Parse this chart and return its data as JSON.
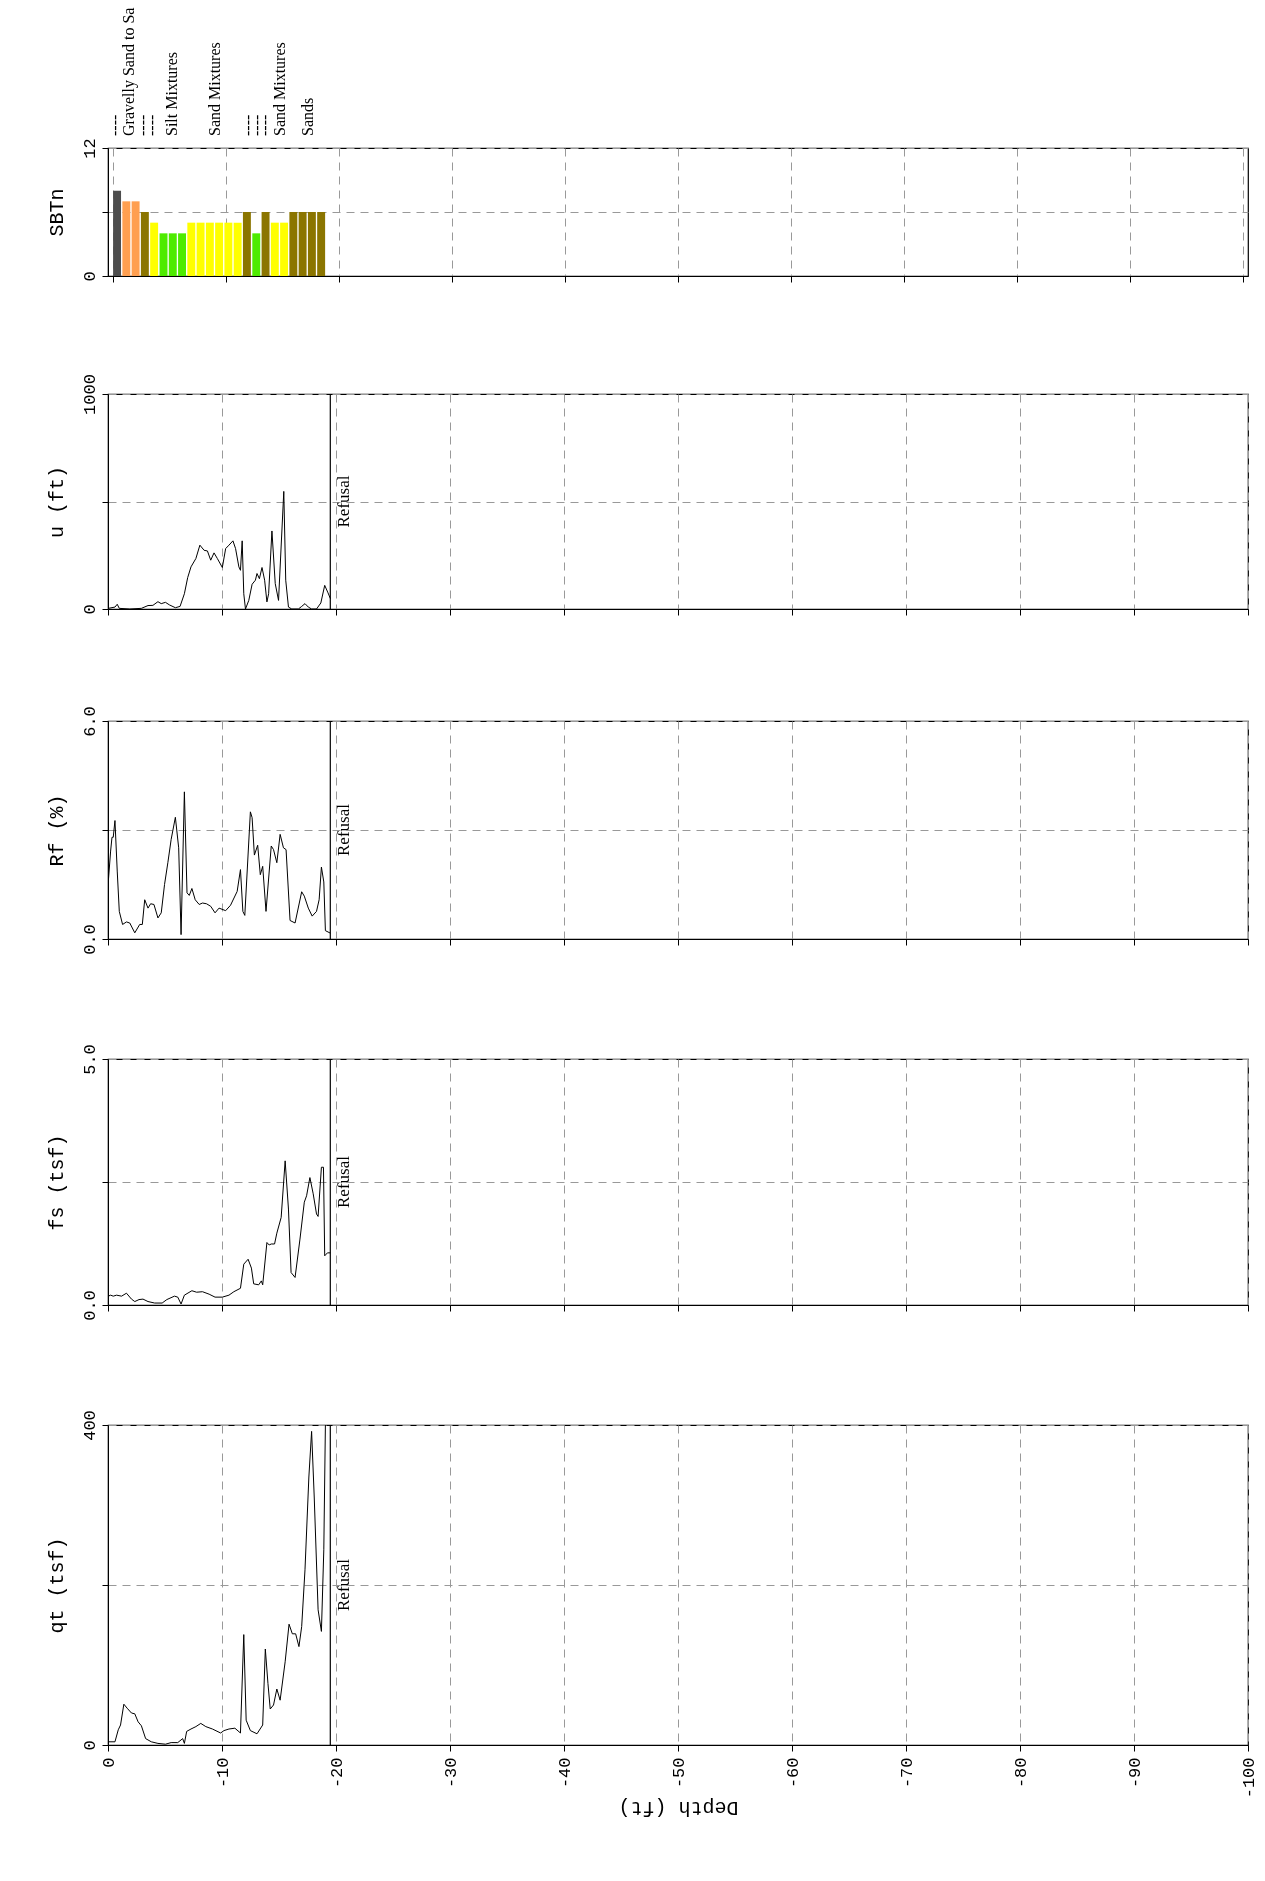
{
  "chart_data": [
    {
      "type": "bar",
      "ylabel": "SBTn",
      "x": [
        -0.36,
        -1.18,
        -2.0,
        -2.82,
        -3.64,
        -4.47,
        -5.29,
        -6.11,
        -6.93,
        -7.75,
        -8.57,
        -9.39,
        -10.21,
        -11.03,
        -11.85,
        -12.68,
        -13.5,
        -14.32,
        -15.14,
        -15.96,
        -16.78,
        -17.6,
        -18.42
      ],
      "values": [
        8,
        7,
        7,
        6,
        5,
        4,
        4,
        4,
        5,
        5,
        5,
        5,
        5,
        5,
        6,
        4,
        6,
        5,
        5,
        6,
        6,
        6,
        6
      ],
      "colors": [
        "#4d4d4d",
        "#ff9f50",
        "#ff9f50",
        "#8b7500",
        "#ffff00",
        "#4eeb00",
        "#4eeb00",
        "#4eeb00",
        "#ffff00",
        "#ffff00",
        "#ffff00",
        "#ffff00",
        "#ffff00",
        "#ffff00",
        "#8b7500",
        "#4eeb00",
        "#8b7500",
        "#ffff00",
        "#ffff00",
        "#8b7500",
        "#8b7500",
        "#8b7500",
        "#8b7500"
      ],
      "annotations": [
        "----",
        "Gravelly Sand to Sa",
        "----",
        "----",
        "Silt Mixtures",
        "Sand Mixtures",
        "----",
        "----",
        "----",
        "Sand Mixtures",
        "Sands"
      ],
      "xlim": [
        0,
        -100
      ],
      "xticks": [
        0,
        -10,
        -20,
        -30,
        -40,
        -50,
        -60,
        -70,
        -80,
        -90,
        -100
      ],
      "ylim": [
        0,
        12
      ],
      "yticks": [
        0,
        {
          "value": 6,
          "label": null
        },
        12
      ],
      "grid": true,
      "tick_labels": "y"
    },
    {
      "type": "line",
      "ylabel": "u (ft)",
      "x": [
        -0.03,
        -0.61,
        -0.81,
        -0.99,
        -1.91,
        -2.93,
        -3.51,
        -3.94,
        -4.38,
        -4.67,
        -5.04,
        -5.39,
        -5.91,
        -6.32,
        -6.7,
        -6.99,
        -7.28,
        -7.71,
        -8.06,
        -8.43,
        -8.72,
        -9.01,
        -9.3,
        -9.59,
        -10.03,
        -10.32,
        -10.61,
        -10.96,
        -11.19,
        -11.48,
        -11.62,
        -11.77,
        -11.91,
        -12.06,
        -12.35,
        -12.64,
        -12.93,
        -13.07,
        -13.28,
        -13.51,
        -13.74,
        -13.94,
        -14.09,
        -14.38,
        -14.67,
        -14.96,
        -15.42,
        -15.59,
        -15.83,
        -16.12,
        -16.7,
        -16.99,
        -17.28,
        -17.57,
        -17.86,
        -18.29,
        -18.67,
        -19.01,
        -19.3,
        -19.51
      ],
      "series": [
        {
          "color": "#000000",
          "values": [
            3,
            9,
            22,
            3,
            0,
            3,
            16,
            17,
            34,
            25,
            31,
            19,
            6,
            12,
            71,
            146,
            196,
            235,
            297,
            273,
            270,
            227,
            261,
            235,
            193,
            281,
            297,
            317,
            281,
            196,
            180,
            317,
            71,
            0,
            40,
            115,
            134,
            165,
            141,
            193,
            134,
            33,
            71,
            363,
            118,
            40,
            547,
            134,
            9,
            0,
            0,
            12,
            25,
            9,
            0,
            0,
            28,
            110,
            75,
            48
          ]
        }
      ],
      "ref_lines": [
        {
          "axis": "x",
          "value": -19.5,
          "label": "Refusal",
          "color": "#000000"
        }
      ],
      "xlim": [
        0,
        -100
      ],
      "xticks": [
        0,
        -10,
        -20,
        -30,
        -40,
        -50,
        -60,
        -70,
        -80,
        -90,
        -100
      ],
      "ylim": [
        0,
        1000
      ],
      "yticks": [
        0,
        {
          "value": 500,
          "label": null
        },
        1000
      ],
      "grid": true,
      "tick_labels": "y"
    },
    {
      "type": "line",
      "ylabel": "Rf (%)",
      "x": [
        -0.03,
        -0.23,
        -0.35,
        -0.46,
        -0.61,
        -0.81,
        -0.99,
        -1.28,
        -1.62,
        -1.91,
        -2.35,
        -2.78,
        -3.01,
        -3.22,
        -3.51,
        -3.74,
        -4.03,
        -4.38,
        -4.67,
        -4.96,
        -5.25,
        -5.54,
        -5.91,
        -6.2,
        -6.41,
        -6.7,
        -6.93,
        -7.13,
        -7.36,
        -7.65,
        -8.0,
        -8.29,
        -8.64,
        -9.01,
        -9.39,
        -9.74,
        -10.32,
        -10.75,
        -11.33,
        -11.62,
        -11.83,
        -12.0,
        -12.49,
        -12.64,
        -12.84,
        -13.13,
        -13.36,
        -13.57,
        -13.86,
        -14.32,
        -14.52,
        -14.81,
        -15.1,
        -15.39,
        -15.62,
        -15.97,
        -16.41,
        -16.99,
        -17.22,
        -17.57,
        -17.91,
        -18.29,
        -18.52,
        -18.72,
        -18.93,
        -19.07,
        -19.51
      ],
      "series": [
        {
          "color": "#000000",
          "values": [
            1.59,
            2.42,
            2.8,
            2.8,
            3.26,
            1.87,
            0.76,
            0.4,
            0.47,
            0.44,
            0.17,
            0.4,
            0.4,
            1.08,
            0.85,
            0.97,
            0.95,
            0.58,
            0.72,
            1.5,
            2.1,
            2.74,
            3.35,
            2.51,
            0.12,
            4.05,
            1.27,
            1.2,
            1.39,
            1.08,
            0.95,
            0.99,
            0.97,
            0.9,
            0.72,
            0.85,
            0.78,
            0.93,
            1.31,
            1.91,
            0.76,
            0.65,
            3.5,
            3.34,
            2.31,
            2.58,
            1.77,
            2.0,
            0.76,
            2.56,
            2.46,
            2.1,
            2.88,
            2.51,
            2.46,
            0.51,
            0.44,
            1.3,
            1.18,
            0.85,
            0.63,
            0.76,
            1.08,
            1.98,
            1.57,
            0.23,
            0.16
          ]
        }
      ],
      "ref_lines": [
        {
          "axis": "x",
          "value": -19.5,
          "label": "Refusal",
          "color": "#000000"
        }
      ],
      "xlim": [
        0,
        -100
      ],
      "xticks": [
        0,
        -10,
        -20,
        -30,
        -40,
        -50,
        -60,
        -70,
        -80,
        -90,
        -100
      ],
      "ylim": [
        0,
        6
      ],
      "yticks": [
        {
          "value": 0,
          "label": "0.0"
        },
        {
          "value": 3,
          "label": null
        },
        {
          "value": 6,
          "label": "6.0"
        }
      ],
      "grid": true,
      "tick_labels": "y"
    },
    {
      "type": "line",
      "ylabel": "fs (tsf)",
      "x": [
        -0.03,
        -0.23,
        -0.46,
        -0.75,
        -1.19,
        -1.62,
        -2.06,
        -2.35,
        -2.72,
        -3.07,
        -3.51,
        -4.09,
        -4.75,
        -5.16,
        -5.83,
        -6.12,
        -6.41,
        -6.7,
        -7.36,
        -7.77,
        -8.29,
        -8.87,
        -9.39,
        -10.03,
        -10.61,
        -11.04,
        -11.62,
        -11.91,
        -12.29,
        -12.58,
        -12.78,
        -13.22,
        -13.45,
        -13.57,
        -13.94,
        -14.14,
        -14.32,
        -14.61,
        -14.81,
        -15.19,
        -15.54,
        -15.83,
        -16.06,
        -16.41,
        -16.84,
        -17.22,
        -17.42,
        -17.71,
        -18.0,
        -18.29,
        -18.43,
        -18.72,
        -18.9,
        -19.01,
        -19.25,
        -19.51
      ],
      "series": [
        {
          "color": "#000000",
          "values": [
            0.18,
            0.2,
            0.18,
            0.2,
            0.18,
            0.24,
            0.12,
            0.07,
            0.11,
            0.12,
            0.07,
            0.04,
            0.04,
            0.11,
            0.18,
            0.16,
            0.02,
            0.2,
            0.29,
            0.26,
            0.27,
            0.22,
            0.16,
            0.16,
            0.2,
            0.27,
            0.34,
            0.83,
            0.93,
            0.75,
            0.43,
            0.41,
            0.49,
            0.41,
            1.27,
            1.22,
            1.24,
            1.24,
            1.46,
            1.78,
            2.93,
            1.95,
            0.66,
            0.56,
            1.34,
            2.09,
            2.22,
            2.59,
            2.26,
            1.85,
            1.8,
            2.8,
            2.8,
            1.0,
            1.06,
            1.06
          ]
        }
      ],
      "ref_lines": [
        {
          "axis": "x",
          "value": -19.5,
          "label": "Refusal",
          "color": "#000000"
        }
      ],
      "xlim": [
        0,
        -100
      ],
      "xticks": [
        0,
        -10,
        -20,
        -30,
        -40,
        -50,
        -60,
        -70,
        -80,
        -90,
        -100
      ],
      "ylim": [
        0,
        5
      ],
      "yticks": [
        {
          "value": 0,
          "label": "0.0"
        },
        {
          "value": 2.5,
          "label": null
        },
        {
          "value": 5,
          "label": "5.0"
        }
      ],
      "grid": true,
      "tick_labels": "y"
    },
    {
      "type": "line",
      "ylabel": "qt (tsf)",
      "xlabel": "Depth (ft)",
      "x": [
        -0.03,
        -0.61,
        -0.9,
        -1.1,
        -1.39,
        -1.68,
        -2.06,
        -2.35,
        -2.64,
        -2.93,
        -3.3,
        -3.8,
        -4.38,
        -5.04,
        -5.54,
        -6.12,
        -6.55,
        -6.7,
        -6.9,
        -7.28,
        -7.71,
        -8.14,
        -8.58,
        -9.16,
        -9.88,
        -10.17,
        -10.61,
        -11.13,
        -11.62,
        -11.91,
        -12.12,
        -12.49,
        -13.07,
        -13.57,
        -13.8,
        -14.03,
        -14.23,
        -14.52,
        -14.81,
        -15.1,
        -15.54,
        -15.88,
        -16.17,
        -16.46,
        -16.75,
        -16.99,
        -17.28,
        -17.62,
        -17.86,
        -18.09,
        -18.43,
        -18.72,
        -18.93,
        -19.07
      ],
      "series": [
        {
          "color": "#000000",
          "values": [
            4,
            4,
            19,
            25,
            51,
            46,
            40,
            39,
            29,
            24,
            8,
            4,
            2,
            1,
            3,
            3,
            8,
            2,
            17,
            20,
            23,
            27,
            23,
            20,
            15,
            18,
            20,
            21,
            15,
            138,
            31,
            18,
            14,
            25,
            120,
            77,
            45,
            50,
            70,
            56,
            104,
            151,
            139,
            139,
            123,
            148,
            219,
            335,
            392,
            310,
            169,
            142,
            244,
            400
          ]
        }
      ],
      "ref_lines": [
        {
          "axis": "x",
          "value": -19.5,
          "label": "Refusal",
          "color": "#000000"
        }
      ],
      "xlim": [
        0,
        -100
      ],
      "xticks": [
        0,
        -10,
        -20,
        -30,
        -40,
        -50,
        -60,
        -70,
        -80,
        -90,
        -100
      ],
      "ylim": [
        0,
        400
      ],
      "yticks": [
        0,
        {
          "value": 200,
          "label": null
        },
        400
      ],
      "grid": true
    }
  ]
}
